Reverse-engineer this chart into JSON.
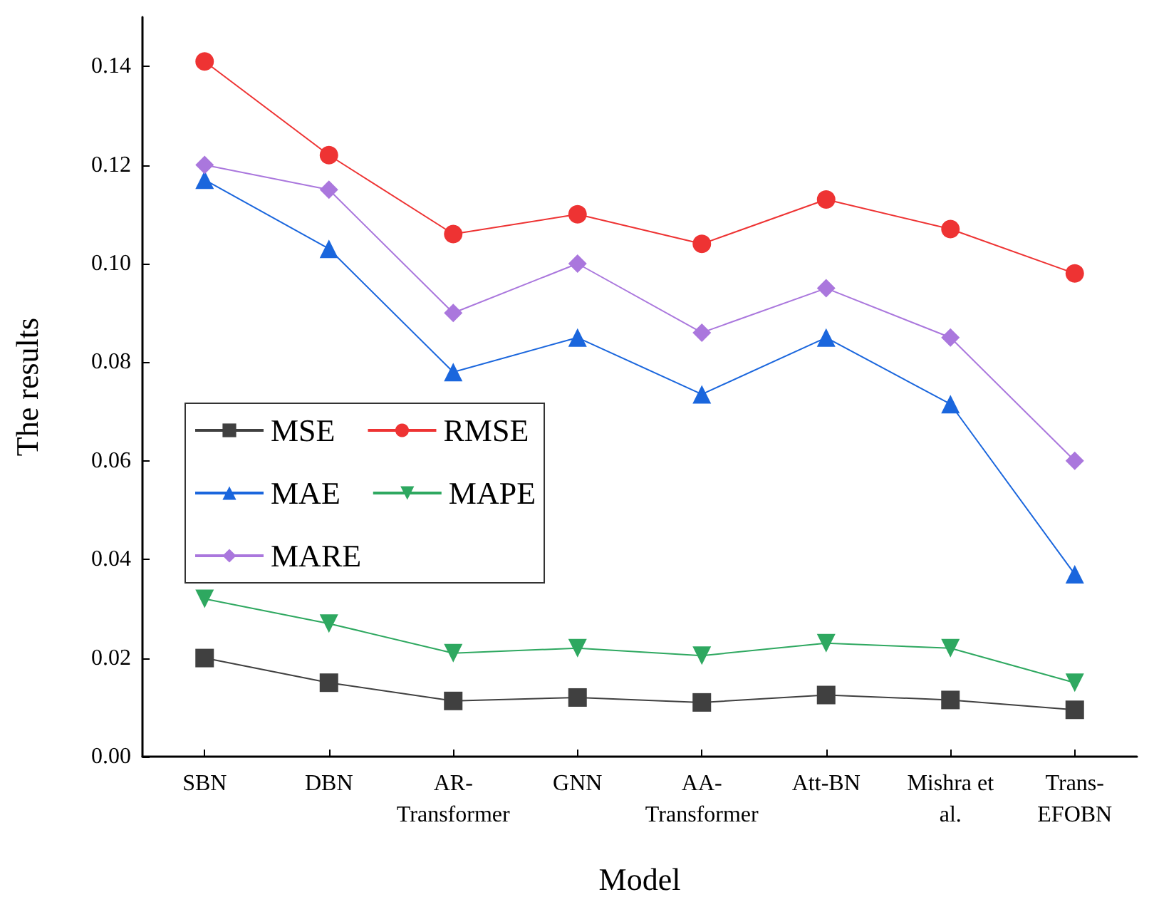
{
  "chart_data": {
    "type": "line",
    "xlabel": "Model",
    "ylabel": "The results",
    "categories": [
      "SBN",
      "DBN",
      "AR-\nTransformer",
      "GNN",
      "AA-\nTransformer",
      "Att-BN",
      "Mishra et\nal.",
      "Trans-\nEFOBN"
    ],
    "series": [
      {
        "name": "MSE",
        "color": "#404040",
        "marker": "square",
        "values": [
          0.02,
          0.015,
          0.0113,
          0.012,
          0.011,
          0.0125,
          0.0115,
          0.0095
        ]
      },
      {
        "name": "RMSE",
        "color": "#ee3333",
        "marker": "circle",
        "values": [
          0.141,
          0.122,
          0.106,
          0.11,
          0.104,
          0.113,
          0.107,
          0.098
        ]
      },
      {
        "name": "MAE",
        "color": "#1a66dd",
        "marker": "triangle",
        "values": [
          0.117,
          0.103,
          0.078,
          0.085,
          0.0735,
          0.085,
          0.0715,
          0.037
        ]
      },
      {
        "name": "MAPE",
        "color": "#2ea860",
        "marker": "triangle-down",
        "values": [
          0.032,
          0.027,
          0.021,
          0.022,
          0.0205,
          0.023,
          0.022,
          0.015
        ]
      },
      {
        "name": "MARE",
        "color": "#aa77dd",
        "marker": "diamond",
        "values": [
          0.12,
          0.115,
          0.09,
          0.1,
          0.086,
          0.095,
          0.085,
          0.06
        ]
      }
    ],
    "ylim": [
      0,
      0.15
    ],
    "yticks": [
      {
        "value": 0,
        "label": "0.00"
      },
      {
        "value": 0.02,
        "label": "0.02"
      },
      {
        "value": 0.04,
        "label": "0.04"
      },
      {
        "value": 0.06,
        "label": "0.06"
      },
      {
        "value": 0.08,
        "label": "0.08"
      },
      {
        "value": 0.1,
        "label": "0.10"
      },
      {
        "value": 0.12,
        "label": "0.12"
      },
      {
        "value": 0.14,
        "label": "0.14"
      }
    ],
    "grid": false,
    "legend": "left",
    "line_style": "solid"
  }
}
